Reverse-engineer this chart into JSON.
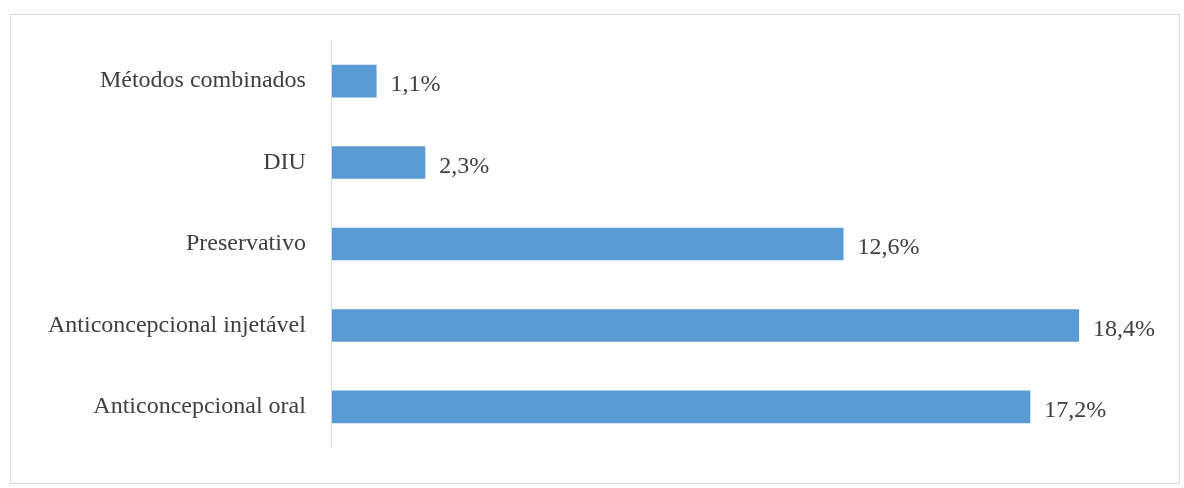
{
  "chart_data": {
    "type": "bar",
    "orientation": "horizontal",
    "categories": [
      "Métodos combinados",
      "DIU",
      "Preservativo",
      "Anticoncepcional injetável",
      "Anticoncepcional oral"
    ],
    "values": [
      1.1,
      2.3,
      12.6,
      18.4,
      17.2
    ],
    "color": "#5b9bd5",
    "value_labels": [
      "1,1%",
      "2,3%",
      "12,6%",
      "18,4%",
      "17,2%"
    ]
  }
}
